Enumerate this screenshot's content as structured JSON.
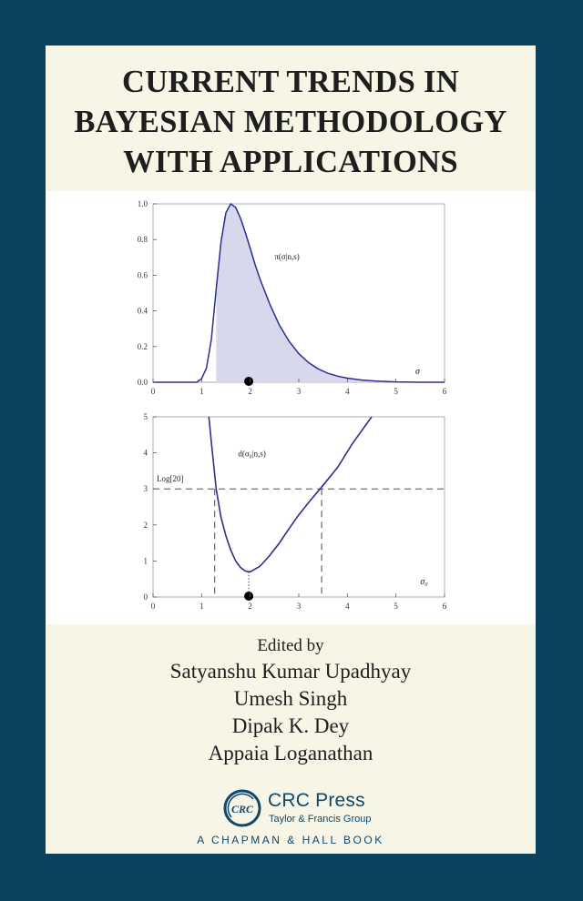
{
  "cover": {
    "title_lines": [
      "CURRENT TRENDS IN",
      "BAYESIAN METHODOLOGY",
      "WITH APPLICATIONS"
    ],
    "edited_by": "Edited by",
    "editors": [
      "Satyanshu Kumar Upadhyay",
      "Umesh Singh",
      "Dipak K. Dey",
      "Appaia Loganathan"
    ],
    "publisher": {
      "logo_text": "CRC",
      "name": "CRC Press",
      "group": "Taylor & Francis Group",
      "imprint": "A CHAPMAN & HALL BOOK"
    },
    "colors": {
      "background": "#0b4260",
      "panel": "#f6f5e6",
      "curve": "#2e2e8c",
      "shade": "#d8d8ec",
      "publisher": "#10486a"
    }
  },
  "chart_data": [
    {
      "type": "area",
      "curve_label": "π(σ|n,s)",
      "x_axis_label": "σ",
      "xlim": [
        0,
        6
      ],
      "ylim": [
        0,
        1.0
      ],
      "x_ticks": [
        "0",
        "1",
        "2",
        "3",
        "4",
        "5",
        "6"
      ],
      "y_ticks": [
        "0.0",
        "0.2",
        "0.4",
        "0.6",
        "0.8",
        "1.0"
      ],
      "x": [
        0.0,
        0.9,
        1.0,
        1.1,
        1.2,
        1.3,
        1.4,
        1.5,
        1.6,
        1.7,
        1.8,
        1.9,
        2.0,
        2.1,
        2.2,
        2.4,
        2.6,
        2.8,
        3.0,
        3.2,
        3.4,
        3.6,
        3.8,
        4.0,
        4.3,
        4.6,
        5.0,
        5.5,
        6.0
      ],
      "y": [
        0.0,
        0.0,
        0.02,
        0.08,
        0.24,
        0.52,
        0.79,
        0.95,
        1.0,
        0.98,
        0.92,
        0.84,
        0.75,
        0.66,
        0.58,
        0.44,
        0.32,
        0.23,
        0.16,
        0.11,
        0.075,
        0.05,
        0.034,
        0.023,
        0.012,
        0.006,
        0.002,
        0.0,
        0.0
      ],
      "shaded_from": 1.3,
      "marker_x": 1.97
    },
    {
      "type": "line",
      "curve_label": "d(σ₀|n,s)",
      "x_axis_label": "σ₀",
      "xlim": [
        0,
        6
      ],
      "ylim": [
        0,
        5
      ],
      "x_ticks": [
        "0",
        "1",
        "2",
        "3",
        "4",
        "5",
        "6"
      ],
      "y_ticks": [
        "0",
        "1",
        "2",
        "3",
        "4",
        "5"
      ],
      "x": [
        1.15,
        1.2,
        1.3,
        1.4,
        1.5,
        1.6,
        1.7,
        1.8,
        1.9,
        2.0,
        2.2,
        2.4,
        2.6,
        2.8,
        3.0,
        3.2,
        3.5,
        3.8,
        4.1,
        4.5
      ],
      "y": [
        5.0,
        4.3,
        3.0,
        2.2,
        1.7,
        1.3,
        1.0,
        0.82,
        0.72,
        0.7,
        0.85,
        1.15,
        1.5,
        1.9,
        2.28,
        2.62,
        3.1,
        3.6,
        4.25,
        5.0
      ],
      "threshold": 3,
      "threshold_label": "Log[20]",
      "interval": [
        1.27,
        3.47
      ],
      "minimum": [
        1.97,
        0.7
      ]
    }
  ]
}
